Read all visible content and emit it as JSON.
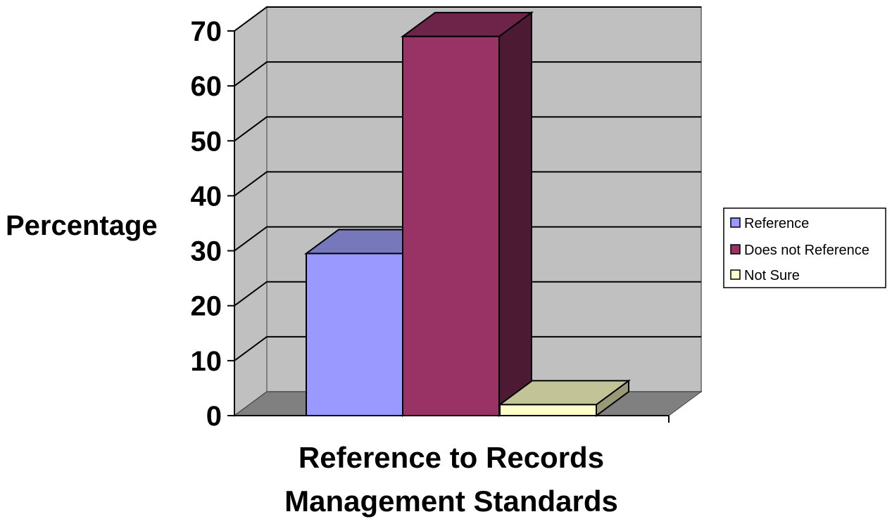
{
  "chart_data": {
    "type": "bar",
    "categories": [
      "Reference",
      "Does not Reference",
      "Not Sure"
    ],
    "values": [
      29.5,
      69,
      2
    ],
    "series": [
      {
        "name": "Reference",
        "value": 29.5,
        "color": "#9999ff"
      },
      {
        "name": "Does not Reference",
        "value": 69,
        "color": "#993366"
      },
      {
        "name": "Not Sure",
        "value": 2,
        "color": "#ffffcc"
      }
    ],
    "title": "",
    "xlabel_lines": [
      "Reference to Records",
      "Management Standards"
    ],
    "ylabel": "Percentage",
    "ylim": [
      0,
      70
    ],
    "yticks": [
      "0",
      "10",
      "20",
      "30",
      "40",
      "50",
      "60",
      "70"
    ],
    "grid": true,
    "style": "3d-column",
    "legend_position": "right",
    "colors": {
      "back_wall": "#c0c0c0",
      "side_wall": "#c0c0c0",
      "floor": "#808080"
    }
  }
}
